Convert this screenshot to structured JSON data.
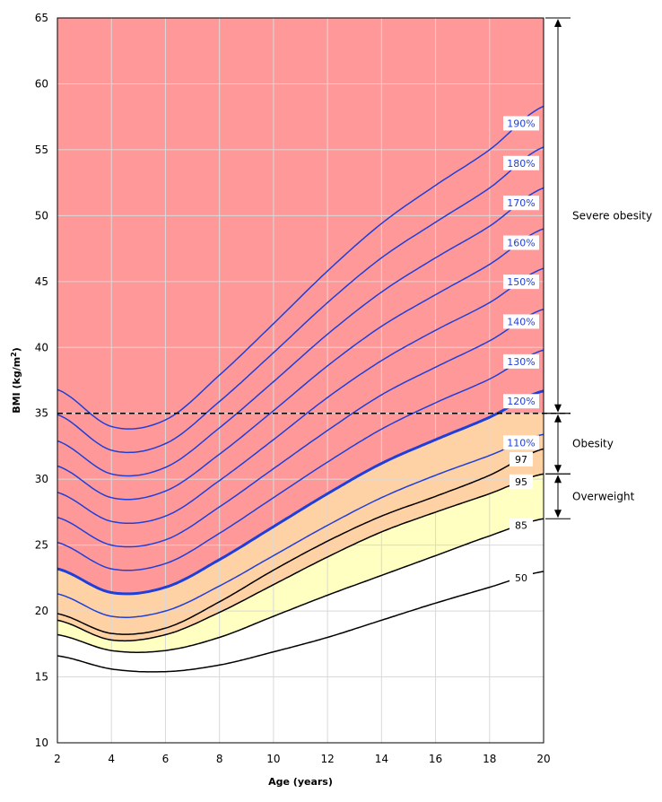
{
  "chart_data": {
    "type": "line",
    "title": "",
    "xlabel": "Age (years)",
    "ylabel_main": "BMI (kg/m",
    "ylabel_sup": "2",
    "ylabel_close": ")",
    "xlim": [
      2,
      20
    ],
    "ylim": [
      10,
      65
    ],
    "x_ticks": [
      "2",
      "4",
      "6",
      "8",
      "10",
      "12",
      "14",
      "16",
      "18",
      "20"
    ],
    "y_ticks": [
      "10",
      "15",
      "20",
      "25",
      "30",
      "35",
      "40",
      "45",
      "50",
      "55",
      "60",
      "65"
    ],
    "x": [
      2,
      4,
      6,
      8,
      10,
      12,
      14,
      16,
      18,
      20
    ],
    "percentile_series": [
      {
        "name": "50",
        "label": "50",
        "values": [
          16.6,
          15.6,
          15.4,
          15.9,
          16.9,
          18.0,
          19.3,
          20.6,
          21.8,
          23.0
        ]
      },
      {
        "name": "85",
        "label": "85",
        "values": [
          18.2,
          17.0,
          17.0,
          18.0,
          19.6,
          21.2,
          22.7,
          24.2,
          25.7,
          27.0
        ]
      },
      {
        "name": "95",
        "label": "95",
        "values": [
          19.3,
          17.8,
          18.2,
          19.9,
          22.0,
          24.1,
          26.0,
          27.5,
          28.9,
          30.4
        ]
      },
      {
        "name": "97",
        "label": "97",
        "values": [
          19.8,
          18.3,
          18.7,
          20.7,
          23.1,
          25.3,
          27.2,
          28.7,
          30.3,
          32.3
        ]
      }
    ],
    "bmi_percent_series": [
      {
        "name": "110%",
        "label": "110%",
        "values": [
          21.3,
          19.6,
          20.0,
          21.9,
          24.2,
          26.5,
          28.6,
          30.3,
          31.8,
          33.4
        ]
      },
      {
        "name": "120%",
        "label": "120%",
        "values": [
          23.2,
          21.4,
          21.8,
          23.9,
          26.4,
          28.9,
          31.2,
          33.0,
          34.7,
          36.7
        ]
      },
      {
        "name": "130%",
        "label": "130%",
        "values": [
          25.2,
          23.2,
          23.6,
          25.9,
          28.6,
          31.3,
          33.8,
          35.8,
          37.6,
          39.8
        ]
      },
      {
        "name": "140%",
        "label": "140%",
        "values": [
          27.1,
          25.0,
          25.4,
          27.9,
          30.8,
          33.7,
          36.4,
          38.5,
          40.5,
          42.9
        ]
      },
      {
        "name": "150%",
        "label": "150%",
        "values": [
          29.0,
          26.8,
          27.2,
          29.9,
          33.0,
          36.2,
          39.0,
          41.3,
          43.4,
          46.0
        ]
      },
      {
        "name": "160%",
        "label": "160%",
        "values": [
          31.0,
          28.6,
          29.1,
          31.9,
          35.2,
          38.6,
          41.6,
          44.0,
          46.3,
          49.0
        ]
      },
      {
        "name": "170%",
        "label": "170%",
        "values": [
          32.9,
          30.4,
          30.9,
          33.9,
          37.4,
          41.0,
          44.2,
          46.8,
          49.2,
          52.1
        ]
      },
      {
        "name": "180%",
        "label": "180%",
        "values": [
          34.9,
          32.2,
          32.7,
          35.9,
          39.6,
          43.4,
          46.8,
          49.5,
          52.1,
          55.2
        ]
      },
      {
        "name": "190%",
        "label": "190%",
        "values": [
          36.8,
          34.0,
          34.5,
          37.9,
          41.8,
          45.8,
          49.4,
          52.3,
          55.0,
          58.3
        ]
      }
    ],
    "severe_threshold": 35,
    "categories": [
      {
        "name": "Severe obesity",
        "from": 35,
        "to": 65
      },
      {
        "name": "Obesity",
        "from": 30.4,
        "to": 35
      },
      {
        "name": "Overweight",
        "from": 27.0,
        "to": 30.4
      }
    ],
    "colors": {
      "severe": "#ff9999",
      "obesity": "#ffd2a6",
      "overweight": "#ffffc2",
      "healthy": "#ffffff",
      "pct_line": "#1f3fd9",
      "percentile_line": "#000000",
      "grid": "#d9d9d9"
    }
  }
}
